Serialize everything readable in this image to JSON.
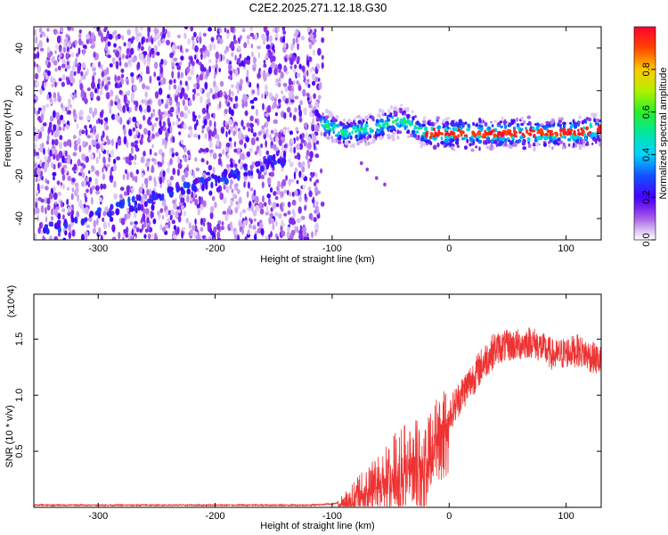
{
  "title": "C2E2.2025.271.12.18.G30",
  "chart_data": [
    {
      "type": "heatmap",
      "xlabel": "Height of straight line (km)",
      "ylabel": "Frequency (Hz)",
      "xlim": [
        -355,
        130
      ],
      "ylim": [
        -50,
        50
      ],
      "xticks": [
        -300,
        -200,
        -100,
        0,
        100
      ],
      "yticks": [
        -40,
        -20,
        0,
        20,
        40
      ],
      "colorbar": {
        "label": "Normalized spectral amplitude",
        "range": [
          0.0,
          1.0
        ],
        "ticks": [
          0.0,
          0.2,
          0.4,
          0.6,
          0.8
        ],
        "colormap": "rainbow (purple-blue-cyan-green-yellow-red)"
      },
      "features": [
        {
          "x_range": [
            -355,
            -110
          ],
          "freq_range": [
            -50,
            50
          ],
          "amplitude": "low (0.0-0.2), noise"
        },
        {
          "x_range": [
            -350,
            -140
          ],
          "freq_range": [
            -45,
            -5
          ],
          "amplitude": "0.1-0.3",
          "description": "diagonal streak rising from -350 km/-45 Hz to -160 km/-15 Hz"
        },
        {
          "x_range": [
            -110,
            130
          ],
          "freq_center": [
            -110,
            5,
            -90,
            0,
            -40,
            6,
            -20,
            0,
            130,
            2
          ],
          "amplitude": "0.4-1.0",
          "description": "narrow band near 0 Hz"
        }
      ],
      "grid": false
    },
    {
      "type": "line",
      "xlabel": "Height of straight line (km)",
      "ylabel": "SNR (10 * v/v)",
      "y_multiplier": "(x10^4)",
      "xlim": [
        -355,
        130
      ],
      "ylim": [
        0,
        1.9
      ],
      "xticks": [
        -300,
        -200,
        -100,
        0,
        100
      ],
      "yticks": [
        0.5,
        1.0,
        1.5
      ],
      "color": "#ee3333",
      "series": [
        {
          "x": [
            -355,
            -300,
            -200,
            -120,
            -100,
            -90,
            -80,
            -70,
            -60,
            -50,
            -40,
            -30,
            -20,
            -10,
            0,
            10,
            20,
            30,
            40,
            50,
            60,
            70,
            80,
            90,
            100,
            110,
            120,
            130
          ],
          "values": [
            0.02,
            0.02,
            0.02,
            0.02,
            0.03,
            0.05,
            0.12,
            0.2,
            0.28,
            0.38,
            0.45,
            0.5,
            0.48,
            0.72,
            0.82,
            1.0,
            1.15,
            1.3,
            1.42,
            1.44,
            1.45,
            1.48,
            1.42,
            1.35,
            1.38,
            1.4,
            1.35,
            1.3
          ]
        }
      ],
      "grid": false
    }
  ]
}
